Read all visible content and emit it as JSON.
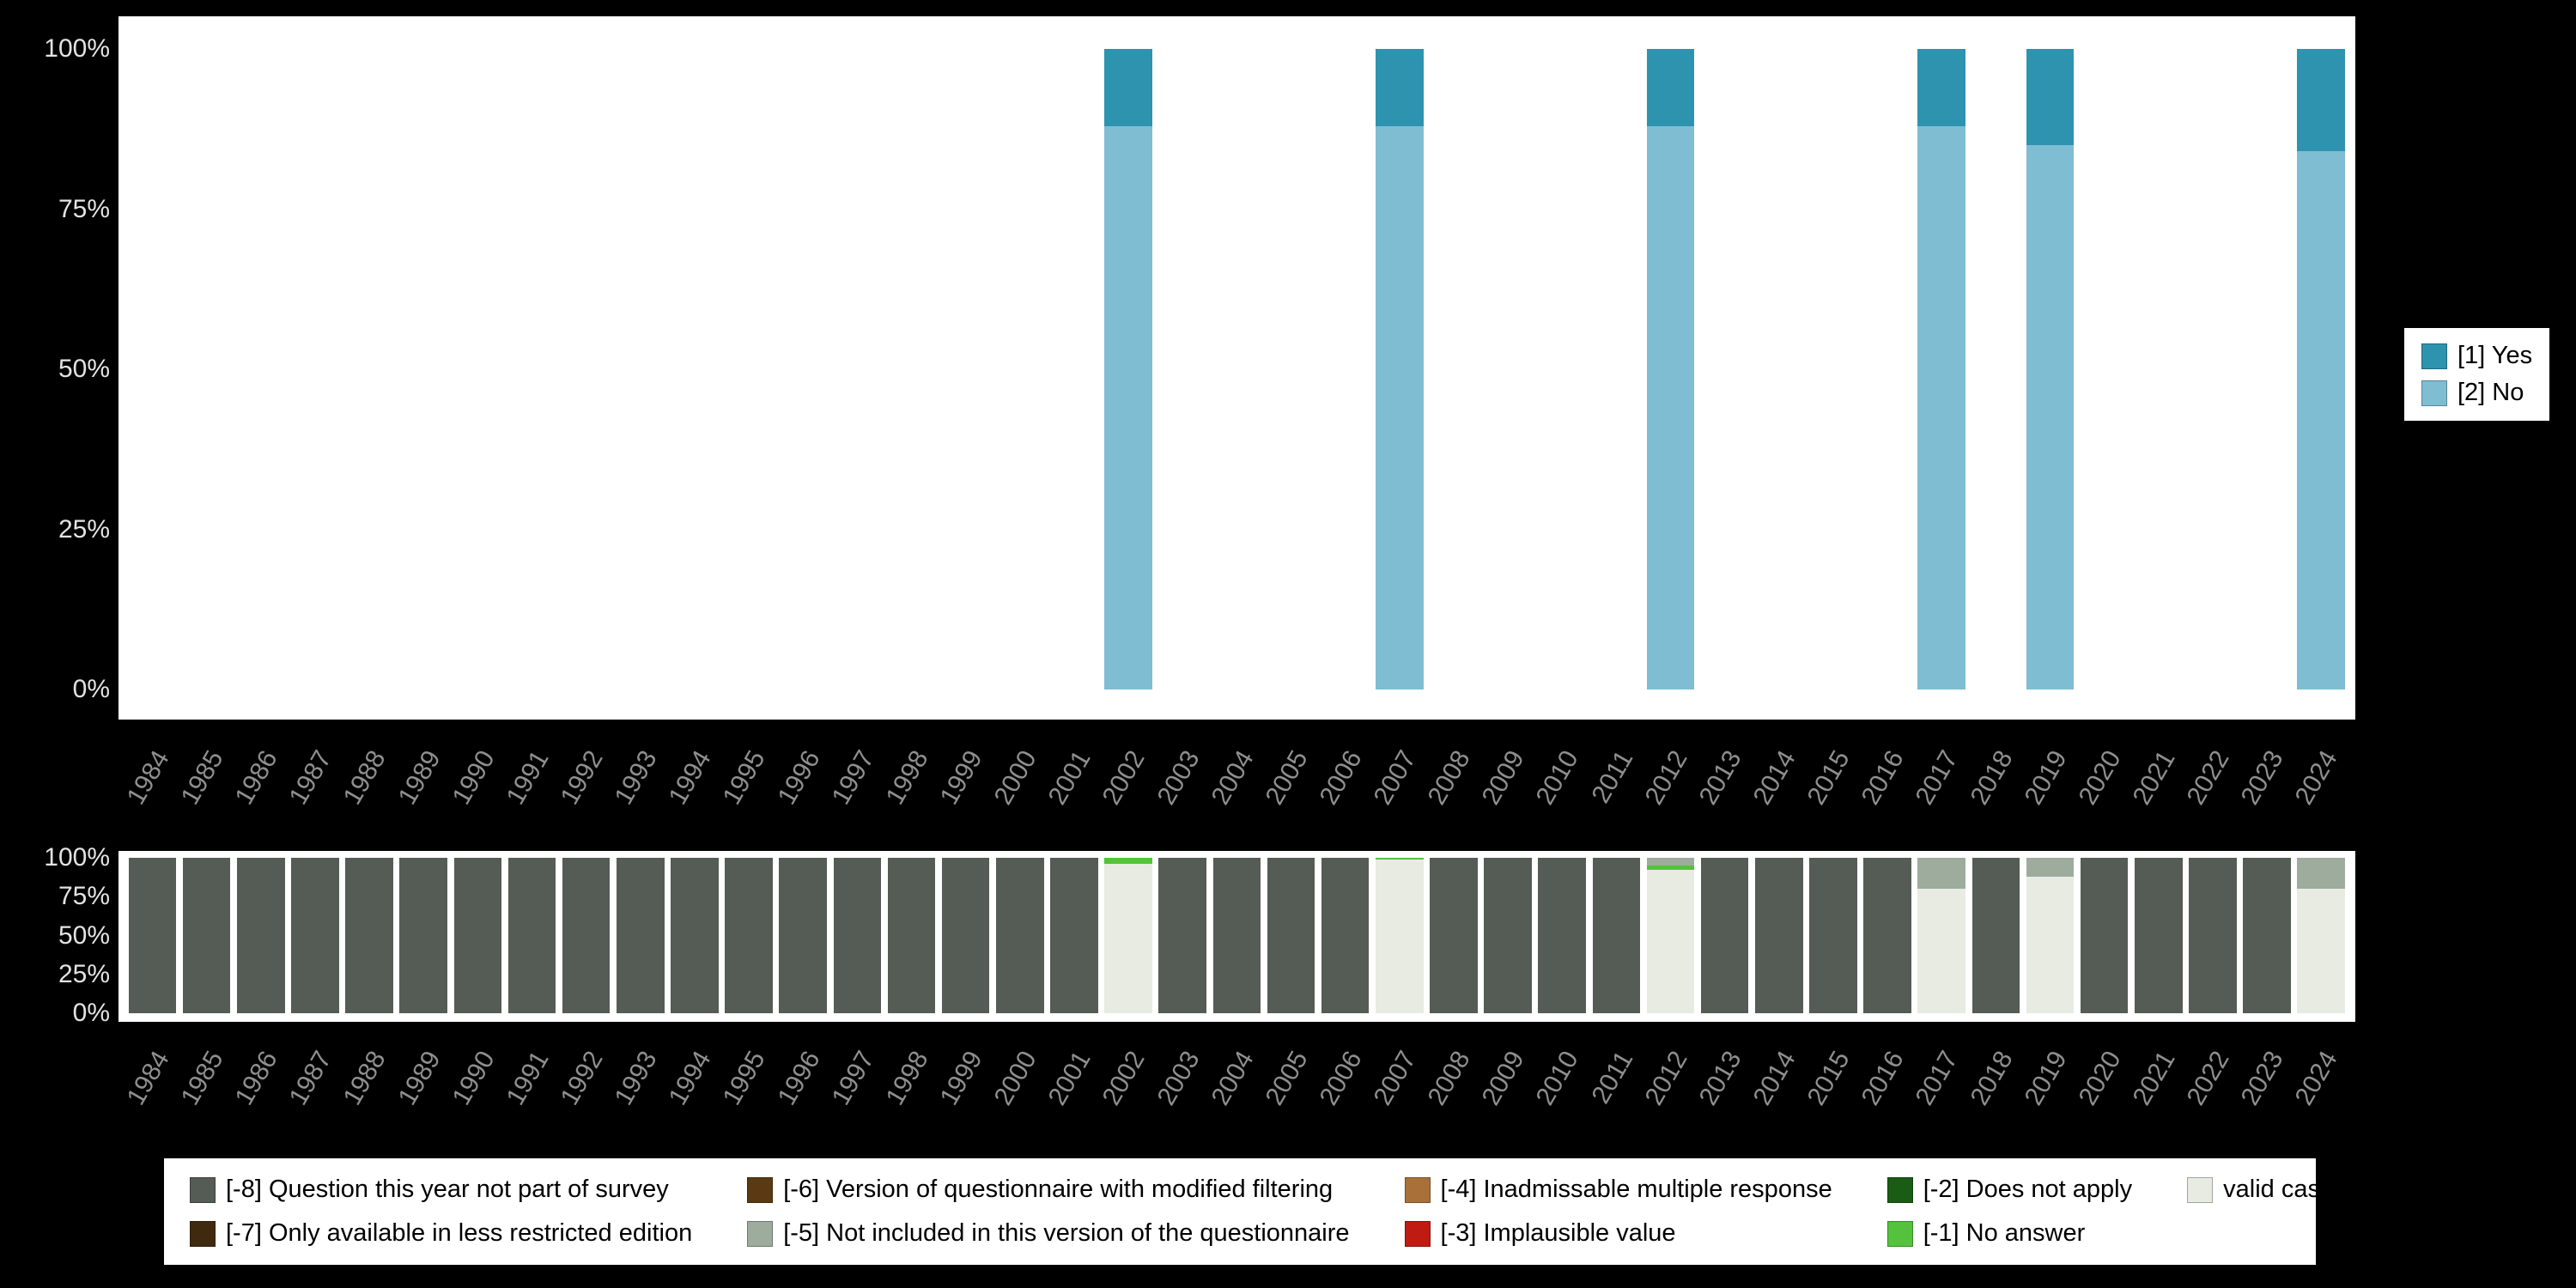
{
  "page": {
    "background": "#000000"
  },
  "chart_data": [
    {
      "id": "response-distribution",
      "type": "bar",
      "stacked": true,
      "orientation": "vertical",
      "ylim": [
        0,
        100
      ],
      "grid": false,
      "legend_position": "right",
      "yticks": [
        "100%",
        "75%",
        "50%",
        "25%",
        "0%"
      ],
      "x": [
        "1984",
        "1985",
        "1986",
        "1987",
        "1988",
        "1989",
        "1990",
        "1991",
        "1992",
        "1993",
        "1994",
        "1995",
        "1996",
        "1997",
        "1998",
        "1999",
        "2000",
        "2001",
        "2002",
        "2003",
        "2004",
        "2005",
        "2006",
        "2007",
        "2008",
        "2009",
        "2010",
        "2011",
        "2012",
        "2013",
        "2014",
        "2015",
        "2016",
        "2017",
        "2018",
        "2019",
        "2020",
        "2021",
        "2022",
        "2023",
        "2024"
      ],
      "series": [
        {
          "name": "[2] No",
          "color": "#7fbdd2",
          "values": [
            0,
            0,
            0,
            0,
            0,
            0,
            0,
            0,
            0,
            0,
            0,
            0,
            0,
            0,
            0,
            0,
            0,
            0,
            88,
            0,
            0,
            0,
            0,
            88,
            0,
            0,
            0,
            0,
            88,
            0,
            0,
            0,
            0,
            88,
            0,
            85,
            0,
            0,
            0,
            0,
            84
          ]
        },
        {
          "name": "[1] Yes",
          "color": "#2e93ae",
          "values": [
            0,
            0,
            0,
            0,
            0,
            0,
            0,
            0,
            0,
            0,
            0,
            0,
            0,
            0,
            0,
            0,
            0,
            0,
            12,
            0,
            0,
            0,
            0,
            12,
            0,
            0,
            0,
            0,
            12,
            0,
            0,
            0,
            0,
            12,
            0,
            15,
            0,
            0,
            0,
            0,
            16
          ]
        }
      ],
      "legend": [
        {
          "label": "[1] Yes",
          "color": "#2e93ae"
        },
        {
          "label": "[2] No",
          "color": "#7fbdd2"
        }
      ]
    },
    {
      "id": "missing-values-distribution",
      "type": "bar",
      "stacked": true,
      "orientation": "vertical",
      "ylim": [
        0,
        100
      ],
      "grid": false,
      "legend_position": "bottom",
      "yticks": [
        "100%",
        "75%",
        "50%",
        "25%",
        "0%"
      ],
      "x": [
        "1984",
        "1985",
        "1986",
        "1987",
        "1988",
        "1989",
        "1990",
        "1991",
        "1992",
        "1993",
        "1994",
        "1995",
        "1996",
        "1997",
        "1998",
        "1999",
        "2000",
        "2001",
        "2002",
        "2003",
        "2004",
        "2005",
        "2006",
        "2007",
        "2008",
        "2009",
        "2010",
        "2011",
        "2012",
        "2013",
        "2014",
        "2015",
        "2016",
        "2017",
        "2018",
        "2019",
        "2020",
        "2021",
        "2022",
        "2023",
        "2024"
      ],
      "series": [
        {
          "name": "valid cases",
          "color": "#e7ebe2",
          "values": [
            0,
            0,
            0,
            0,
            0,
            0,
            0,
            0,
            0,
            0,
            0,
            0,
            0,
            0,
            0,
            0,
            0,
            0,
            96,
            0,
            0,
            0,
            0,
            99,
            0,
            0,
            0,
            0,
            92,
            0,
            0,
            0,
            0,
            80,
            0,
            88,
            0,
            0,
            0,
            0,
            80
          ]
        },
        {
          "name": "[-1] No answer",
          "color": "#54c23c",
          "values": [
            0,
            0,
            0,
            0,
            0,
            0,
            0,
            0,
            0,
            0,
            0,
            0,
            0,
            0,
            0,
            0,
            0,
            0,
            4,
            0,
            0,
            0,
            0,
            1,
            0,
            0,
            0,
            0,
            3,
            0,
            0,
            0,
            0,
            0,
            0,
            0,
            0,
            0,
            0,
            0,
            0
          ]
        },
        {
          "name": "[-5] Not included in this version of the questionnaire",
          "color": "#9dac9c",
          "values": [
            0,
            0,
            0,
            0,
            0,
            0,
            0,
            0,
            0,
            0,
            0,
            0,
            0,
            0,
            0,
            0,
            0,
            0,
            0,
            0,
            0,
            0,
            0,
            0,
            0,
            0,
            0,
            0,
            5,
            0,
            0,
            0,
            0,
            20,
            0,
            12,
            0,
            0,
            0,
            0,
            20
          ]
        },
        {
          "name": "[-8] Question this year not part of survey",
          "color": "#555b55",
          "values": [
            100,
            100,
            100,
            100,
            100,
            100,
            100,
            100,
            100,
            100,
            100,
            100,
            100,
            100,
            100,
            100,
            100,
            100,
            0,
            100,
            100,
            100,
            100,
            0,
            100,
            100,
            100,
            100,
            0,
            100,
            100,
            100,
            100,
            0,
            100,
            0,
            100,
            100,
            100,
            100,
            0
          ]
        }
      ]
    }
  ],
  "missing_legend": {
    "items": [
      {
        "label": "[-8] Question this year not part of survey",
        "color": "#555b55"
      },
      {
        "label": "[-7] Only available in less restricted edition",
        "color": "#3f2a10"
      },
      {
        "label": "[-6] Version of questionnaire with modified filtering",
        "color": "#5a3a12"
      },
      {
        "label": "[-5] Not included in this version of the questionnaire",
        "color": "#9dac9c"
      },
      {
        "label": "[-4] Inadmissable multiple response",
        "color": "#aa7039"
      },
      {
        "label": "[-3] Implausible value",
        "color": "#bf1b13"
      },
      {
        "label": "[-2] Does not apply",
        "color": "#1a5c13"
      },
      {
        "label": "[-1] No answer",
        "color": "#54c23c"
      },
      {
        "label": "valid cases",
        "color": "#e7ebe2"
      }
    ]
  }
}
